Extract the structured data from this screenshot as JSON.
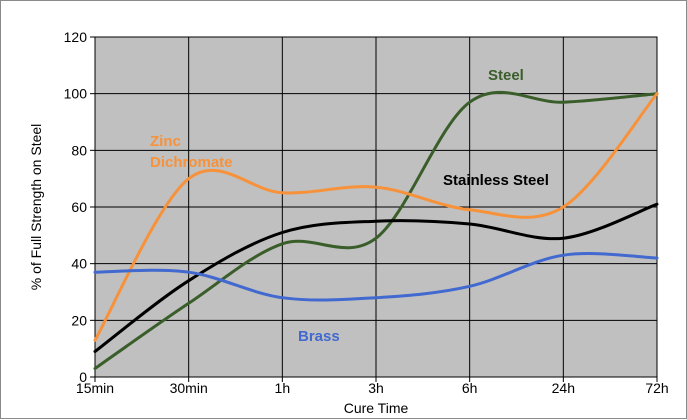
{
  "chart_data": {
    "type": "line",
    "title": "",
    "xlabel": "Cure Time",
    "ylabel": "% of Full Strength on Steel",
    "categories": [
      "15min",
      "30min",
      "1h",
      "3h",
      "6h",
      "24h",
      "72h"
    ],
    "ylim": [
      0,
      120
    ],
    "yticks": [
      0,
      20,
      40,
      60,
      80,
      100,
      120
    ],
    "grid": true,
    "legend": "none",
    "plot_background": "#c0c0c0",
    "series": [
      {
        "name": "Steel",
        "label_lines": [
          "Steel"
        ],
        "color": "#3a5e2a",
        "values": [
          3,
          26,
          47,
          49,
          97,
          97,
          100
        ]
      },
      {
        "name": "Zinc Dichromate",
        "label_lines": [
          "Zinc",
          "Dichromate"
        ],
        "color": "#f7923a",
        "values": [
          13,
          70,
          65,
          67,
          59,
          60,
          100
        ]
      },
      {
        "name": "Stainless Steel",
        "label_lines": [
          "Stainless Steel"
        ],
        "color": "#000000",
        "values": [
          9,
          34,
          51,
          55,
          54,
          49,
          61
        ]
      },
      {
        "name": "Brass",
        "label_lines": [
          "Brass"
        ],
        "color": "#4169d0",
        "values": [
          37,
          37,
          28,
          28,
          32,
          43,
          42
        ]
      }
    ]
  }
}
